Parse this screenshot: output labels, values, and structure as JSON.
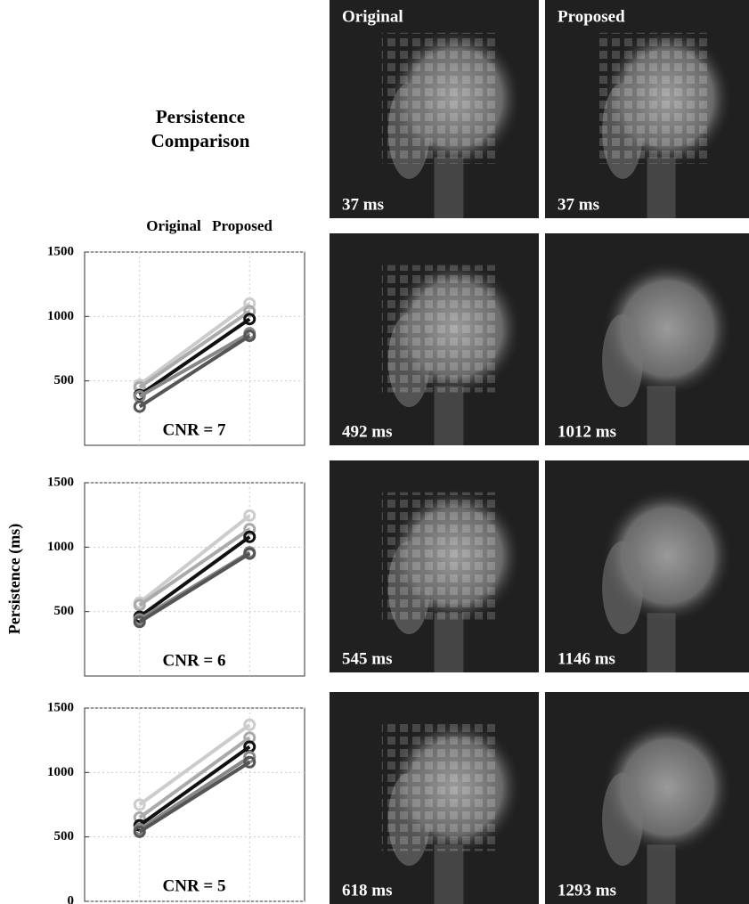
{
  "title": "Persistence Comparison",
  "x_labels": [
    "Original",
    "Proposed"
  ],
  "y_label": "Persistence (ms)",
  "images": {
    "columns": [
      "Original",
      "Proposed"
    ],
    "rows": [
      [
        "37 ms",
        "37 ms"
      ],
      [
        "492 ms",
        "1012 ms"
      ],
      [
        "545 ms",
        "1146 ms"
      ],
      [
        "618 ms",
        "1293 ms"
      ]
    ]
  },
  "chart_data": [
    {
      "type": "line",
      "annotation": "CNR = 7",
      "ylim": [
        0,
        1500
      ],
      "yticks": [
        500,
        1000,
        1500
      ],
      "grid": true,
      "series": [
        {
          "color": "#cccccc",
          "values": [
            470,
            1100
          ]
        },
        {
          "color": "#aaaaaa",
          "values": [
            450,
            1040
          ]
        },
        {
          "color": "#111111",
          "values": [
            390,
            980
          ]
        },
        {
          "color": "#888888",
          "values": [
            380,
            870
          ]
        },
        {
          "color": "#555555",
          "values": [
            300,
            850
          ]
        }
      ]
    },
    {
      "type": "line",
      "annotation": "CNR = 6",
      "ylim": [
        0,
        1500
      ],
      "yticks": [
        500,
        1000,
        1500
      ],
      "grid": true,
      "series": [
        {
          "color": "#cccccc",
          "values": [
            570,
            1245
          ]
        },
        {
          "color": "#aaaaaa",
          "values": [
            550,
            1140
          ]
        },
        {
          "color": "#111111",
          "values": [
            460,
            1080
          ]
        },
        {
          "color": "#888888",
          "values": [
            440,
            960
          ]
        },
        {
          "color": "#555555",
          "values": [
            420,
            950
          ]
        }
      ]
    },
    {
      "type": "line",
      "annotation": "CNR = 5",
      "ylim": [
        0,
        1500
      ],
      "yticks": [
        0,
        500,
        1000,
        1500
      ],
      "grid": true,
      "series": [
        {
          "color": "#cccccc",
          "values": [
            750,
            1370
          ]
        },
        {
          "color": "#aaaaaa",
          "values": [
            650,
            1270
          ]
        },
        {
          "color": "#111111",
          "values": [
            590,
            1200
          ]
        },
        {
          "color": "#888888",
          "values": [
            560,
            1120
          ]
        },
        {
          "color": "#555555",
          "values": [
            540,
            1080
          ]
        }
      ]
    }
  ]
}
